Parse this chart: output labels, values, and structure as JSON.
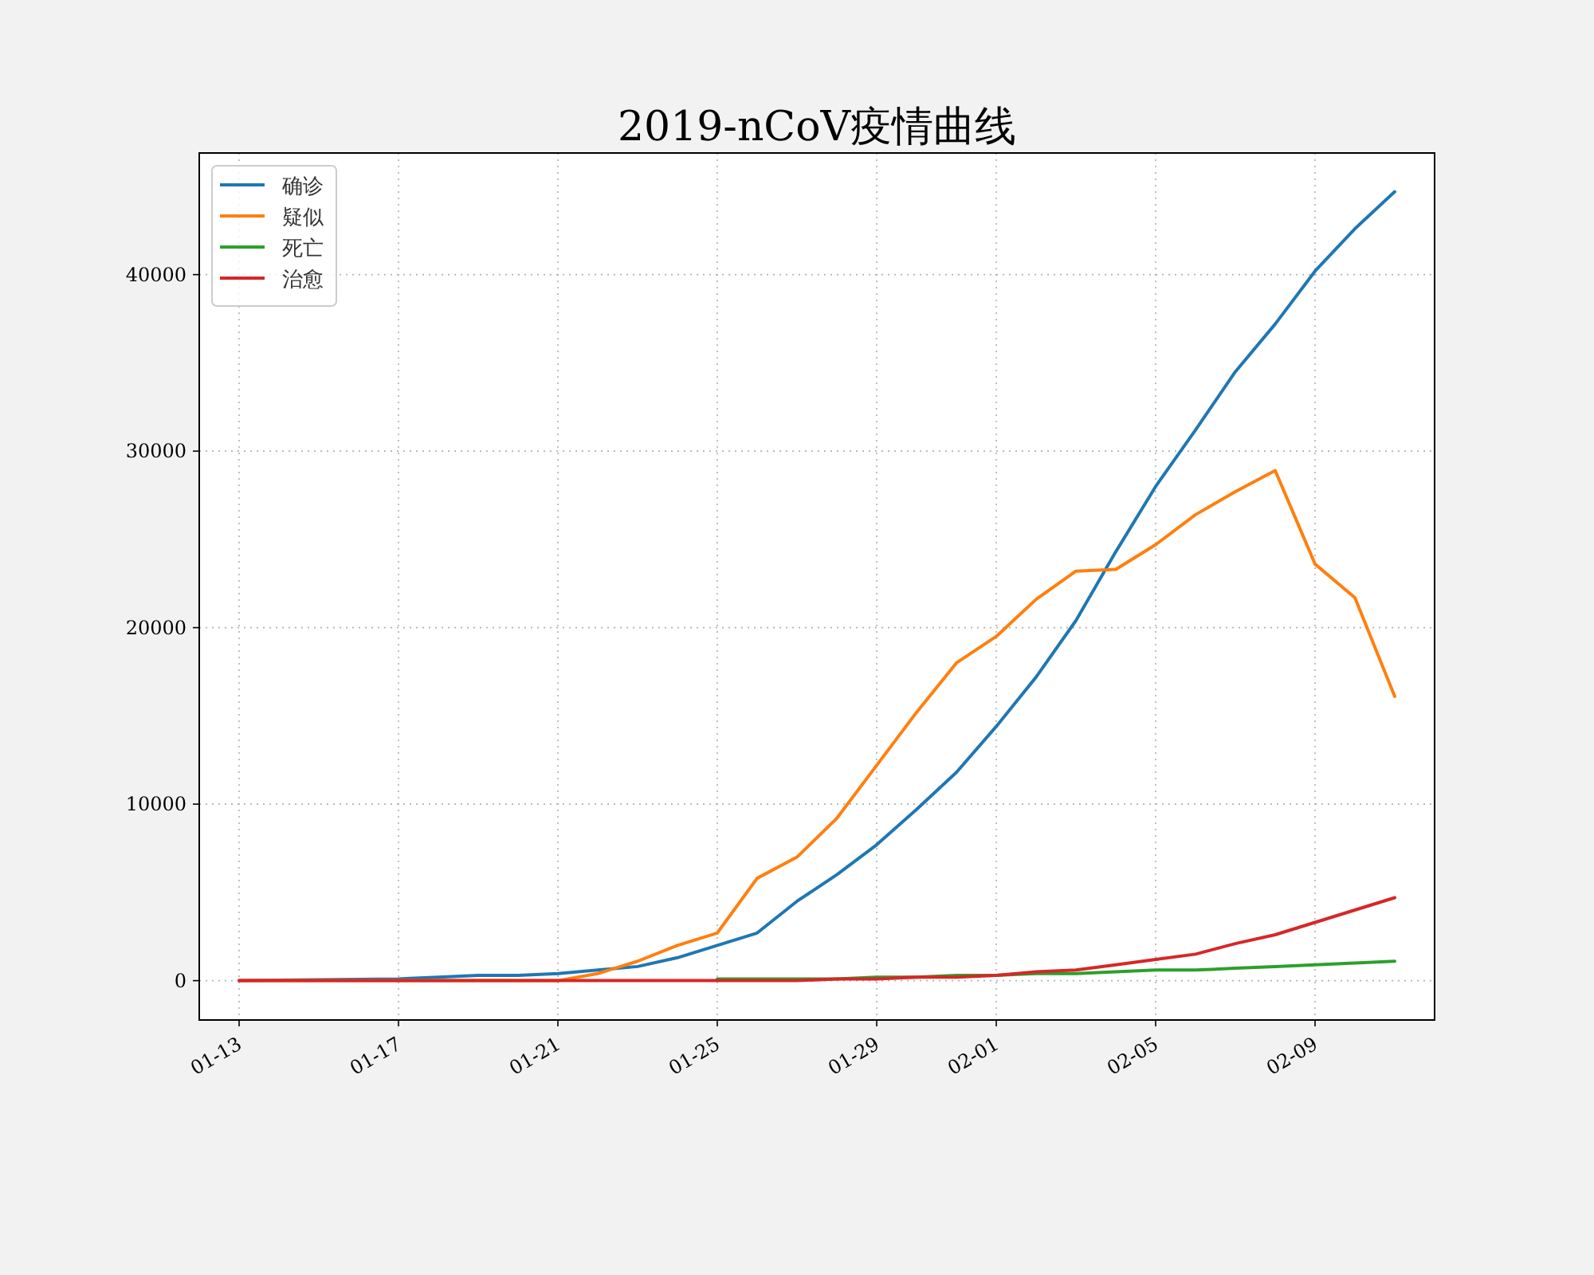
{
  "chart_data": {
    "type": "line",
    "title": "2019-nCoV疫情曲线",
    "xlim": [
      "--01-12",
      "--02-12"
    ],
    "ylim": [
      -2230,
      46890
    ],
    "xticks": [
      {
        "value": "--01-13",
        "label": "01-13"
      },
      {
        "value": "--01-17",
        "label": "01-17"
      },
      {
        "value": "--01-21",
        "label": "01-21"
      },
      {
        "value": "--01-25",
        "label": "01-25"
      },
      {
        "value": "--01-29",
        "label": "01-29"
      },
      {
        "value": "--02-01",
        "label": "02-01"
      },
      {
        "value": "--02-05",
        "label": "02-05"
      },
      {
        "value": "--02-09",
        "label": "02-09"
      }
    ],
    "yticks": [
      0,
      10000,
      20000,
      30000,
      40000
    ],
    "grid": true,
    "legend": "top left",
    "line_style": "solid",
    "marker": "none",
    "series": [
      {
        "name": "确诊",
        "color": "#1f77b4",
        "x": [
          "--01-13",
          "--01-17",
          "--01-18",
          "--01-19",
          "--01-20",
          "--01-21",
          "--01-22",
          "--01-23",
          "--01-24",
          "--01-25",
          "--01-26",
          "--01-27",
          "--01-28",
          "--01-29",
          "--01-30",
          "--01-31",
          "--02-01",
          "--02-02",
          "--02-03",
          "--02-04",
          "--02-05",
          "--02-06",
          "--02-07",
          "--02-08",
          "--02-09",
          "--02-10",
          "--02-11"
        ],
        "values": [
          0,
          100,
          200,
          300,
          300,
          400,
          600,
          800,
          1300,
          2000,
          2700,
          4500,
          6000,
          7700,
          9700,
          11800,
          14400,
          17200,
          20400,
          24300,
          28000,
          31200,
          34500,
          37200,
          40200,
          42600,
          44700
        ]
      },
      {
        "name": "疑似",
        "color": "#ff7f0e",
        "x": [
          "--01-13",
          "--01-21",
          "--01-22",
          "--01-23",
          "--01-24",
          "--01-25",
          "--01-26",
          "--01-27",
          "--01-28",
          "--01-29",
          "--01-30",
          "--01-31",
          "--02-01",
          "--02-02",
          "--02-03",
          "--02-04",
          "--02-05",
          "--02-06",
          "--02-07",
          "--02-08",
          "--02-09",
          "--02-10",
          "--02-11"
        ],
        "values": [
          0,
          0,
          400,
          1100,
          2000,
          2700,
          5800,
          7000,
          9200,
          12200,
          15200,
          18000,
          19500,
          21600,
          23200,
          23300,
          24700,
          26400,
          27700,
          28900,
          23600,
          21700,
          16100
        ]
      },
      {
        "name": "死亡",
        "color": "#2ca02c",
        "x": [
          "--01-25",
          "--01-26",
          "--01-27",
          "--01-28",
          "--01-29",
          "--01-30",
          "--01-31",
          "--02-01",
          "--02-02",
          "--02-03",
          "--02-04",
          "--02-05",
          "--02-06",
          "--02-07",
          "--02-08",
          "--02-09",
          "--02-10",
          "--02-11"
        ],
        "values": [
          100,
          100,
          100,
          100,
          200,
          200,
          300,
          300,
          400,
          400,
          500,
          600,
          600,
          700,
          800,
          900,
          1000,
          1100
        ]
      },
      {
        "name": "治愈",
        "color": "#d62728",
        "x": [
          "--01-13",
          "--01-21",
          "--01-22",
          "--01-23",
          "--01-24",
          "--01-25",
          "--01-26",
          "--01-27",
          "--01-28",
          "--01-29",
          "--01-30",
          "--01-31",
          "--02-01",
          "--02-02",
          "--02-03",
          "--02-04",
          "--02-05",
          "--02-06",
          "--02-07",
          "--02-08",
          "--02-09",
          "--02-10",
          "--02-11"
        ],
        "values": [
          0,
          0,
          0,
          0,
          0,
          0,
          0,
          0,
          100,
          100,
          200,
          200,
          300,
          500,
          600,
          900,
          1200,
          1500,
          2100,
          2600,
          3300,
          4000,
          4700
        ]
      }
    ]
  }
}
